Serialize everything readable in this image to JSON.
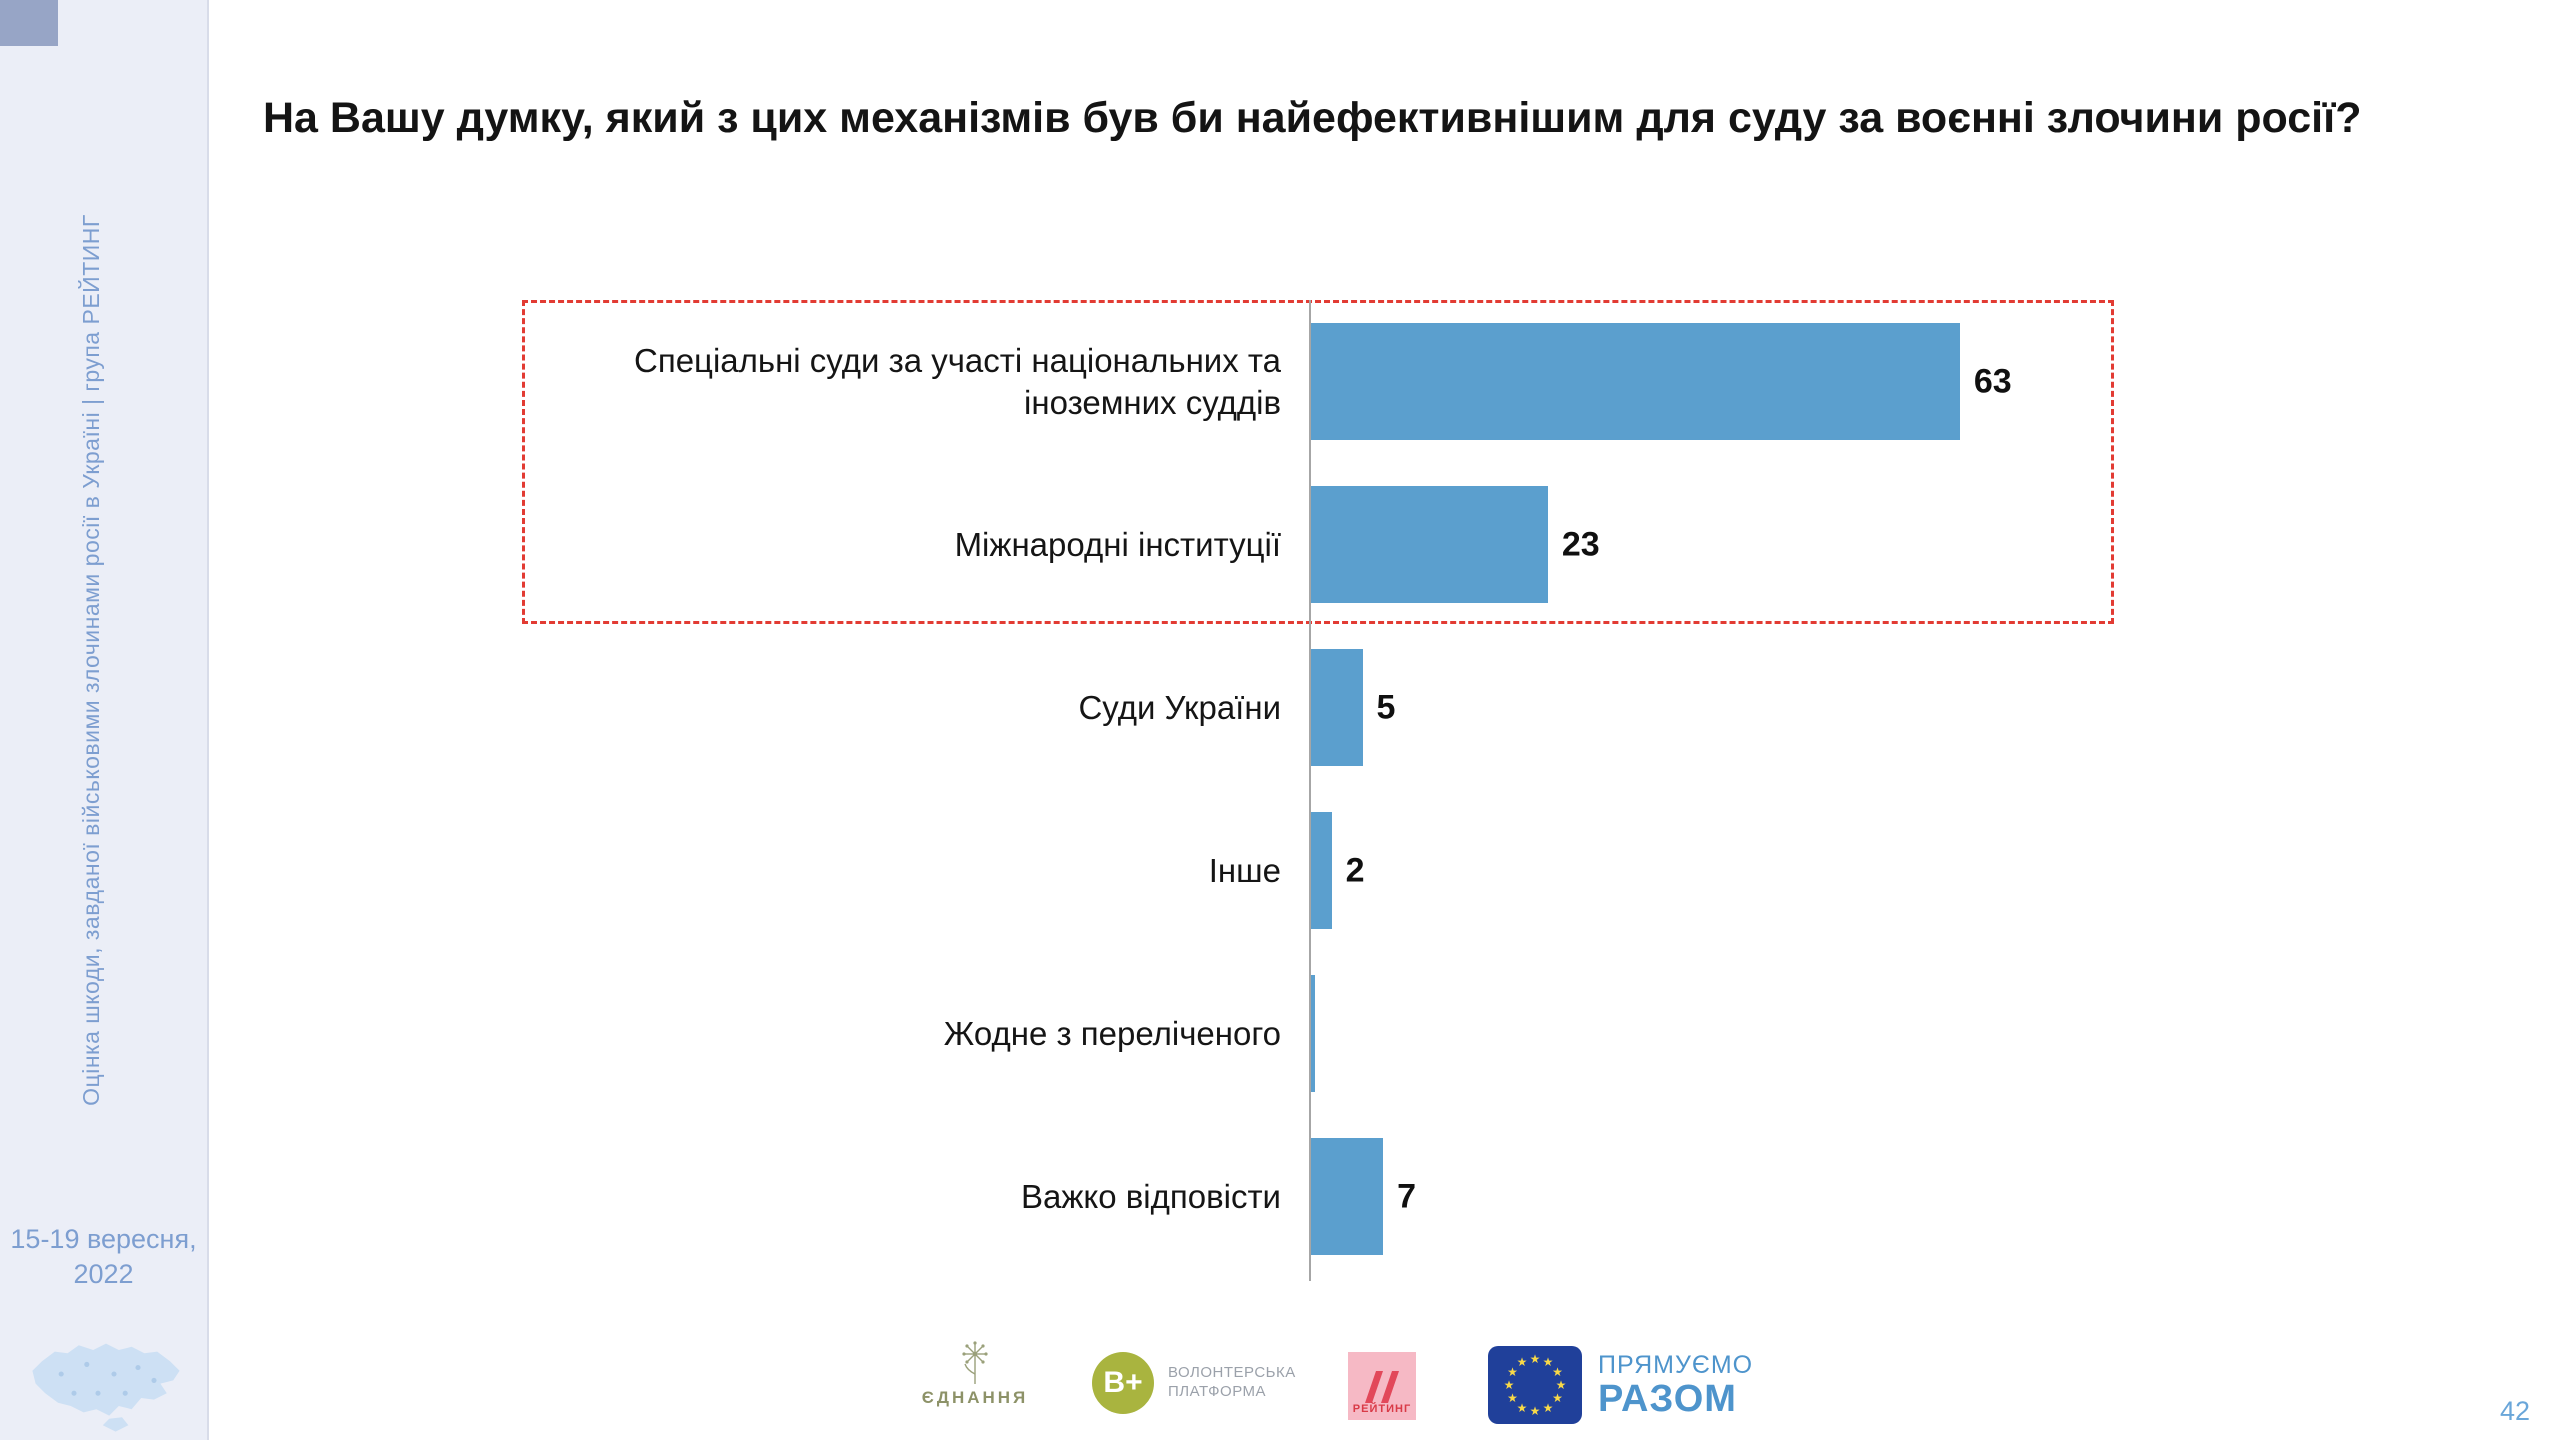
{
  "slide": {
    "title": "На Вашу думку, який з цих механізмів був би найефективнішим для суду за воєнні злочини росії?",
    "page_number": "42"
  },
  "sidebar": {
    "vertical_text": "Оцінка шкоди, завданої військовими злочинами росії в Україні | група РЕЙТИНГ",
    "date_line1": "15-19 вересня,",
    "date_line2": "2022"
  },
  "chart_data": {
    "type": "bar",
    "orientation": "horizontal",
    "title": "На Вашу думку, який з цих механізмів був би найефективнішим для суду за воєнні злочини росії?",
    "categories": [
      "Спеціальні суди за участі національних та іноземних суддів",
      "Міжнародні інституції",
      "Суди України",
      "Інше",
      "Жодне з переліченого",
      "Важко відповісти"
    ],
    "values": [
      63,
      23,
      5,
      2,
      0,
      7
    ],
    "value_labels": [
      "63",
      "23",
      "5",
      "2",
      "",
      "7"
    ],
    "xlim": [
      0,
      70
    ],
    "bar_color": "#5b9fce",
    "highlight": {
      "rows_highlighted": [
        0,
        1
      ],
      "style": "red dashed rectangle"
    },
    "legend": "none",
    "grid": "off"
  },
  "footer": {
    "yednannia_label": "ЄДНАННЯ",
    "bplus_label": "В+",
    "bplus_caption_line1": "ВОЛОНТЕРСЬКА",
    "bplus_caption_line2": "ПЛАТФОРМА",
    "rating_label": "РЕЙТИНГ",
    "eu_text_line1": "ПРЯМУЄМО",
    "eu_text_line2": "РАЗОМ"
  },
  "colors": {
    "bar": "#5b9fce",
    "highlight_red": "#e23b33",
    "sidebar_text": "#7d9ed0",
    "sidebar_bg": "#ebeef7",
    "eu_blue": "#20409a",
    "eu_star_yellow": "#f8d948"
  }
}
